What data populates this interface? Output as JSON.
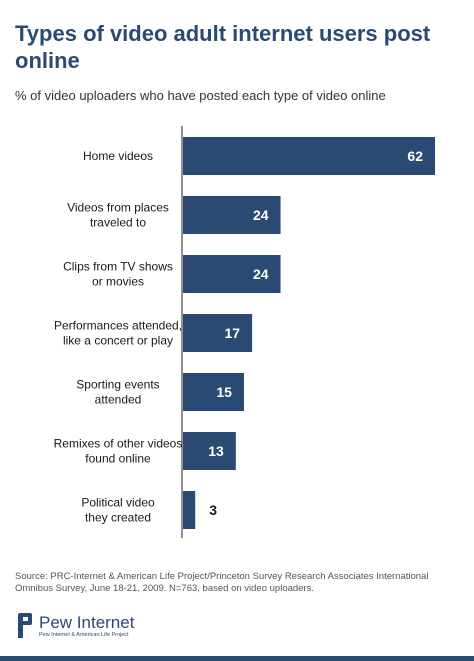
{
  "title": "Types of video adult internet users post online",
  "subtitle": "% of video uploaders who have posted each type of video online",
  "source": "Source: PRC-Internet & American Life Project/Princeton Survey Research Associates International Omnibus Survey, June 18-21, 2009. N=763, based on video uploaders.",
  "logo": {
    "name": "Pew Internet",
    "tagline": "Pew Internet & American Life Project"
  },
  "colors": {
    "bar": "#2b4a73",
    "title": "#2b4a73",
    "value_inside": "#ffffff",
    "value_outside": "#1a1a1a"
  },
  "chart_data": {
    "type": "bar",
    "orientation": "horizontal",
    "categories": [
      [
        "Home videos"
      ],
      [
        "Videos from places",
        "traveled to"
      ],
      [
        "Clips from TV shows",
        "or movies"
      ],
      [
        "Performances attended,",
        "like a concert or play"
      ],
      [
        "Sporting events",
        "attended"
      ],
      [
        "Remixes of other videos",
        "found online"
      ],
      [
        "Political video",
        "they created"
      ]
    ],
    "values": [
      62,
      24,
      24,
      17,
      15,
      13,
      3
    ],
    "xlim": [
      0,
      62
    ],
    "grid": false,
    "legend": "none",
    "data_labels": true
  }
}
